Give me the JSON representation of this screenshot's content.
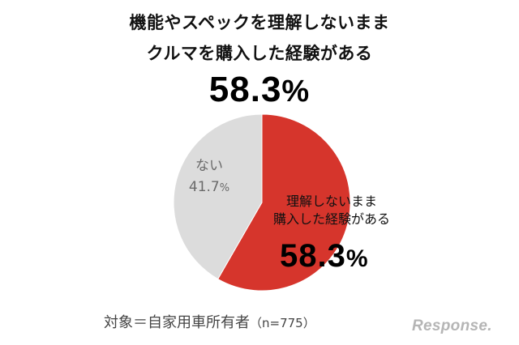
{
  "title_line1": "機能やスペックを理解しないまま",
  "title_line2": "クルマを購入した経験がある",
  "headline_value": "58.3",
  "percent_sign": "%",
  "footnote": "対象＝自家用車所有者",
  "footnote_n": "（n=775）",
  "logo_text": "Response.",
  "colors": {
    "yes": "#d6352c",
    "no": "#dcdcdc",
    "slice_border": "#ffffff"
  },
  "chart_data": {
    "type": "pie",
    "title": "機能やスペックを理解しないまま クルマを購入した経験がある",
    "slices": [
      {
        "name": "理解しないまま購入した経験がある",
        "label_line1": "理解しないまま",
        "label_line2": "購入した経験がある",
        "value": 58.3,
        "value_label": "58.3",
        "color": "#d6352c"
      },
      {
        "name": "ない",
        "label_line1": "ない",
        "value": 41.7,
        "value_label": "41.7",
        "color": "#dcdcdc"
      }
    ],
    "start": "top",
    "direction": "clockwise",
    "legend": "none"
  }
}
